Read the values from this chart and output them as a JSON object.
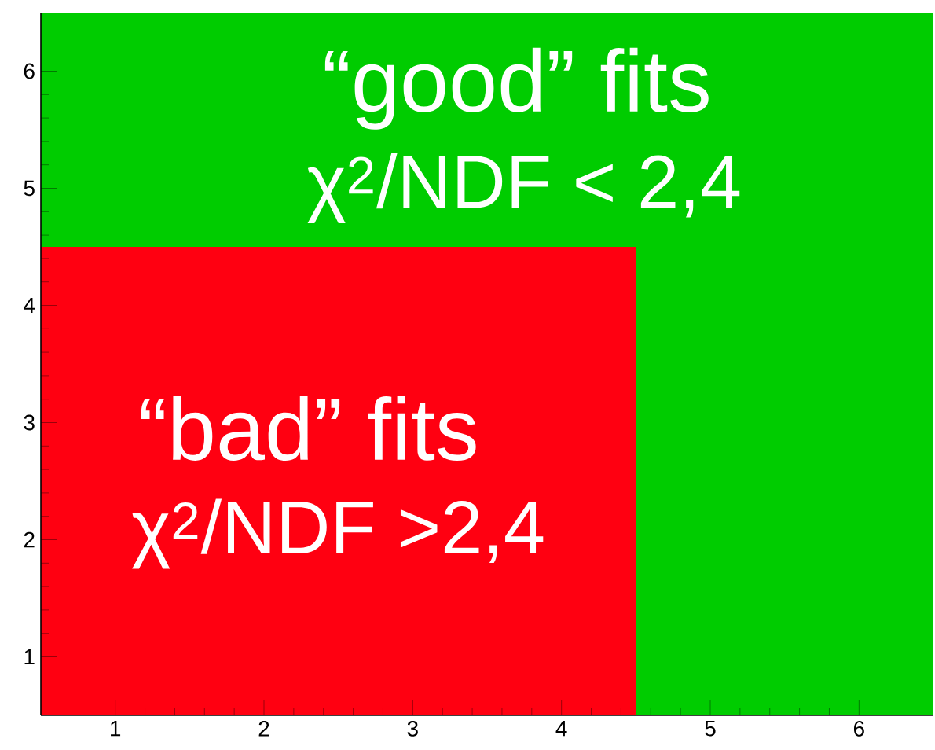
{
  "chart_data": {
    "type": "area",
    "xlim": [
      0.5,
      6.5
    ],
    "ylim": [
      0.5,
      6.5
    ],
    "xticks": [
      1,
      2,
      3,
      4,
      5,
      6
    ],
    "yticks": [
      1,
      2,
      3,
      4,
      5,
      6
    ],
    "grid": false,
    "series": [
      {
        "color": "#ff0011",
        "x": [
          0.5,
          4.5
        ],
        "values": [
          4.5,
          4.5
        ]
      }
    ],
    "annotations": [
      "“good” fits",
      "χ$^{2}$/NDF < 2,4",
      "“bad” fits",
      "χ$^{2}$/NDF >2,4"
    ]
  }
}
